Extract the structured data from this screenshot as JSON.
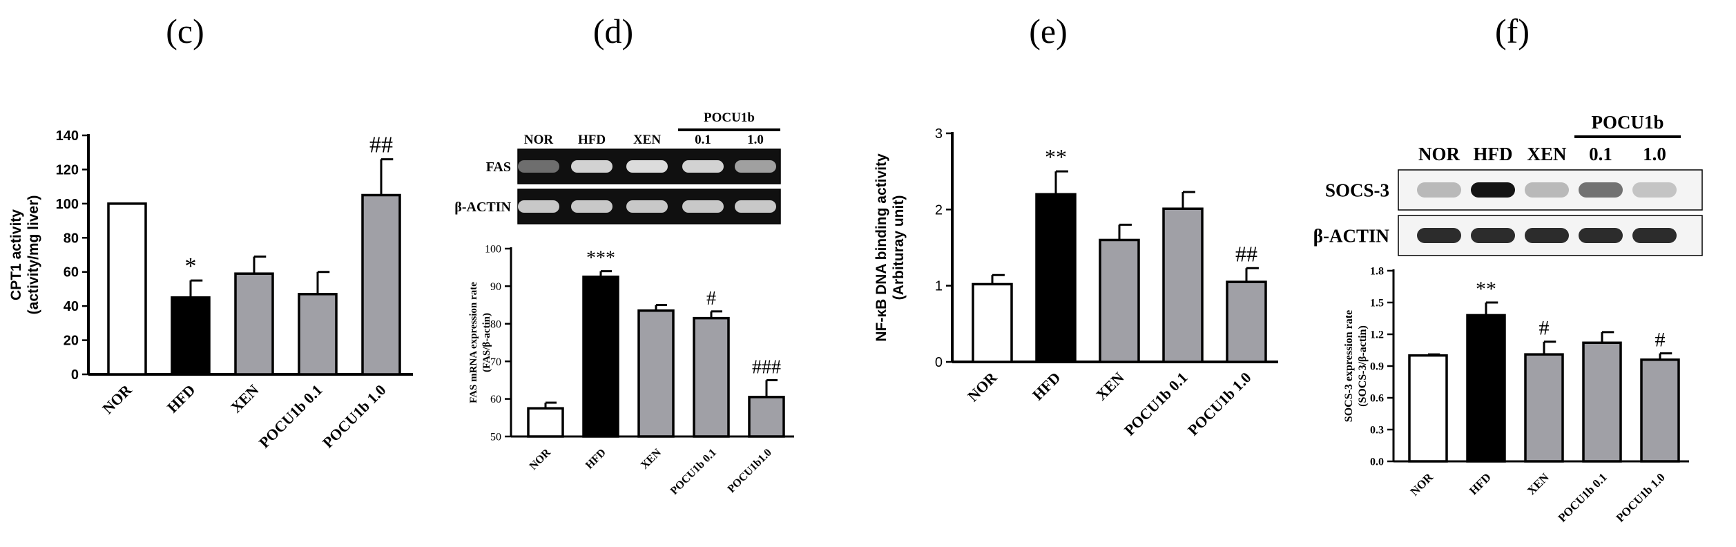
{
  "panels": [
    {
      "id": "c",
      "panel_label": "(c)",
      "chart_data": {
        "type": "bar",
        "title": "",
        "ylabel": "CPT1 activity",
        "ylabel2": "(activity/mg liver)",
        "xlabel": "",
        "categories": [
          "NOR",
          "HFD",
          "XEN",
          "POCU1b 0.1",
          "POCU1b 1.0"
        ],
        "values": [
          100,
          45,
          59,
          47,
          105
        ],
        "errors": [
          0,
          10,
          10,
          13,
          21
        ],
        "annotations": [
          "",
          "*",
          "",
          "",
          "##"
        ],
        "ylim": [
          0,
          140
        ],
        "yticks": [
          "0",
          "20",
          "40",
          "60",
          "80",
          "100",
          "120",
          "140"
        ],
        "bar_fills": [
          "#ffffff",
          "#000000",
          "#a0a0a6",
          "#a0a0a6",
          "#a0a0a6"
        ],
        "grid": false
      }
    },
    {
      "id": "d",
      "panel_label": "(d)",
      "blot": {
        "lanes": [
          "NOR",
          "HFD",
          "XEN",
          "0.1",
          "1.0"
        ],
        "group_label": "POCU1b",
        "rows": [
          "FAS",
          "β-ACTIN"
        ],
        "intensities": [
          [
            0.35,
            0.85,
            0.9,
            0.85,
            0.6
          ],
          [
            0.8,
            0.8,
            0.8,
            0.8,
            0.8
          ]
        ]
      },
      "chart_data": {
        "type": "bar",
        "title": "",
        "ylabel": "FAS mRNA expression rate",
        "ylabel2": "(FAS/β-actin)",
        "xlabel": "",
        "categories": [
          "NOR",
          "HFD",
          "XEN",
          "POCU1b 0.1",
          "POCU1b1.0"
        ],
        "values": [
          57.5,
          92.5,
          83.5,
          81.5,
          60.5
        ],
        "errors": [
          1.5,
          1.5,
          1.5,
          1.8,
          4.5
        ],
        "annotations": [
          "",
          "***",
          "",
          "#",
          "###"
        ],
        "ylim": [
          50,
          100
        ],
        "yticks": [
          "50",
          "60",
          "70",
          "80",
          "90",
          "100"
        ],
        "bar_fills": [
          "#ffffff",
          "#000000",
          "#a0a0a6",
          "#a0a0a6",
          "#a0a0a6"
        ],
        "grid": false
      }
    },
    {
      "id": "e",
      "panel_label": "(e)",
      "chart_data": {
        "type": "bar",
        "title": "",
        "ylabel": "NF-κB DNA binding activity",
        "ylabel2": "(Arbituray unit)",
        "xlabel": "",
        "categories": [
          "NOR",
          "HFD",
          "XEN",
          "POCU1b 0.1",
          "POCU1b 1.0"
        ],
        "values": [
          1.02,
          2.2,
          1.6,
          2.01,
          1.05
        ],
        "errors": [
          0.12,
          0.3,
          0.2,
          0.22,
          0.18
        ],
        "annotations": [
          "",
          "**",
          "",
          "",
          "##"
        ],
        "ylim": [
          0,
          3
        ],
        "yticks": [
          "0",
          "1",
          "2",
          "3"
        ],
        "bar_fills": [
          "#ffffff",
          "#000000",
          "#a0a0a6",
          "#a0a0a6",
          "#a0a0a6"
        ],
        "grid": false
      }
    },
    {
      "id": "f",
      "panel_label": "(f)",
      "blot": {
        "lanes": [
          "NOR",
          "HFD",
          "XEN",
          "0.1",
          "1.0"
        ],
        "group_label": "POCU1b",
        "rows": [
          "SOCS-3",
          "β-ACTIN"
        ],
        "intensities": [
          [
            0.3,
            1.0,
            0.3,
            0.6,
            0.25
          ],
          [
            0.9,
            0.9,
            0.9,
            0.9,
            0.9
          ]
        ]
      },
      "chart_data": {
        "type": "bar",
        "title": "",
        "ylabel": "SOCS-3 expression rate",
        "ylabel2": "(SOCS-3/β-actin)",
        "xlabel": "",
        "categories": [
          "NOR",
          "HFD",
          "XEN",
          "POCU1b 0.1",
          "POCU1b 1.0"
        ],
        "values": [
          1.0,
          1.38,
          1.01,
          1.12,
          0.96
        ],
        "errors": [
          0.01,
          0.12,
          0.12,
          0.1,
          0.06
        ],
        "annotations": [
          "",
          "**",
          "#",
          "",
          "#"
        ],
        "ylim": [
          0,
          1.8
        ],
        "yticks": [
          "0.0",
          "0.3",
          "0.6",
          "0.9",
          "1.2",
          "1.5",
          "1.8"
        ],
        "bar_fills": [
          "#ffffff",
          "#000000",
          "#a0a0a6",
          "#a0a0a6",
          "#a0a0a6"
        ],
        "grid": false
      }
    }
  ]
}
